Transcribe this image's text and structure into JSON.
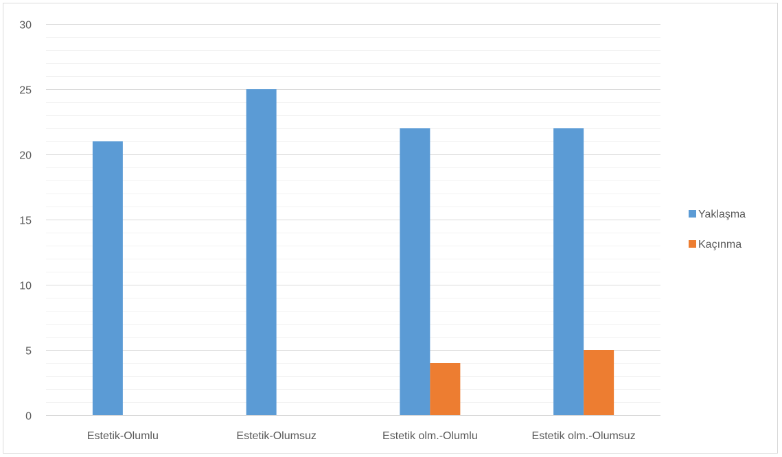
{
  "chart_data": {
    "type": "bar",
    "title": "",
    "xlabel": "",
    "ylabel": "",
    "categories": [
      "Estetik-Olumlu",
      "Estetik-Olumsuz",
      "Estetik olm.-Olumlu",
      "Estetik olm.-Olumsuz"
    ],
    "series": [
      {
        "name": "Yaklaşma",
        "color": "#5b9bd5",
        "values": [
          21,
          25,
          22,
          22
        ]
      },
      {
        "name": "Kaçınma",
        "color": "#ed7d31",
        "values": [
          0,
          0,
          4,
          5
        ]
      }
    ],
    "ylim": [
      0,
      30
    ],
    "yticks": [
      0,
      5,
      10,
      15,
      20,
      25,
      30
    ],
    "minor_grid_step": 1,
    "grid": true,
    "legend_position": "right"
  }
}
